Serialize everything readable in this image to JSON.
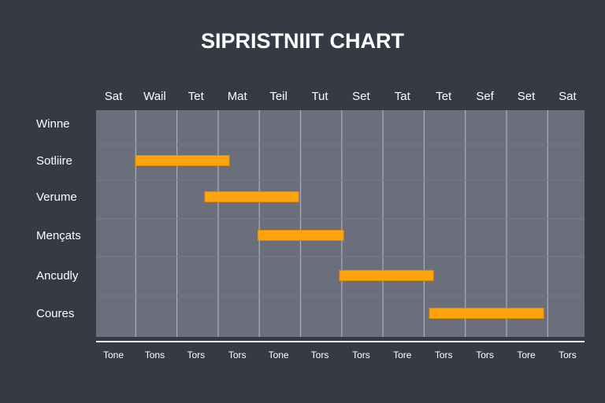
{
  "chart_data": {
    "type": "gantt",
    "title": "SIPRISTNIIT CHART",
    "top_tick_labels": [
      "Sat",
      "Wail",
      "Tet",
      "Mat",
      "Teil",
      "Tut",
      "Set",
      "Tat",
      "Tet",
      "Sef",
      "Set",
      "Sat"
    ],
    "bottom_tick_labels": [
      "Tone",
      "Tons",
      "Tors",
      "Tors",
      "Tone",
      "Tors",
      "Tors",
      "Tore",
      "Tors",
      "Tors",
      "Tore",
      "Tors"
    ],
    "rows": [
      "Winne",
      "Sotliire",
      "Verume",
      "Mençats",
      "Ancudly",
      "Coures"
    ],
    "x_range": [
      0,
      12
    ],
    "tasks": [
      {
        "row": "Sotliire",
        "start": 1.0,
        "end": 3.3
      },
      {
        "row": "Verume",
        "start": 2.7,
        "end": 5.0
      },
      {
        "row": "Mençats",
        "start": 4.0,
        "end": 6.1
      },
      {
        "row": "Ancudly",
        "start": 6.0,
        "end": 8.3
      },
      {
        "row": "Coures",
        "start": 8.2,
        "end": 11.0
      }
    ],
    "grid": true,
    "bar_color": "#ffa30f",
    "plot_background": "#6b6f7b",
    "page_background": "#363a45"
  }
}
